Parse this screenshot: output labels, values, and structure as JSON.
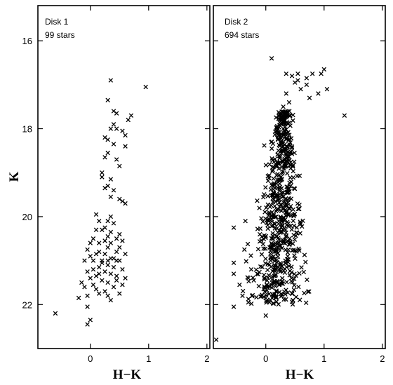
{
  "chart_data": [
    {
      "type": "scatter",
      "title": "Disk 1",
      "subtitle": "99 stars",
      "xlabel": "H−K",
      "ylabel": "K",
      "xlim": [
        -0.9,
        2.05
      ],
      "ylim": [
        23.0,
        15.2
      ],
      "y_inverted": true,
      "xticks": [
        0,
        1,
        2
      ],
      "yticks": [
        16,
        18,
        20,
        22
      ],
      "marker": "x",
      "grid": false,
      "points": [
        [
          0.35,
          16.9
        ],
        [
          0.95,
          17.05
        ],
        [
          0.3,
          17.35
        ],
        [
          0.4,
          17.6
        ],
        [
          0.45,
          17.65
        ],
        [
          0.7,
          17.7
        ],
        [
          0.65,
          17.8
        ],
        [
          0.4,
          17.9
        ],
        [
          0.45,
          18.0
        ],
        [
          0.35,
          18.0
        ],
        [
          0.55,
          18.05
        ],
        [
          0.6,
          18.15
        ],
        [
          0.25,
          18.2
        ],
        [
          0.3,
          18.25
        ],
        [
          0.4,
          18.35
        ],
        [
          0.6,
          18.4
        ],
        [
          0.3,
          18.55
        ],
        [
          0.45,
          18.7
        ],
        [
          0.2,
          19.0
        ],
        [
          0.2,
          19.1
        ],
        [
          0.35,
          19.15
        ],
        [
          0.3,
          19.3
        ],
        [
          0.25,
          19.35
        ],
        [
          0.4,
          19.4
        ],
        [
          0.5,
          19.6
        ],
        [
          0.55,
          19.65
        ],
        [
          0.6,
          19.7
        ],
        [
          0.1,
          19.95
        ],
        [
          0.35,
          20.0
        ],
        [
          0.15,
          20.1
        ],
        [
          0.3,
          20.1
        ],
        [
          0.4,
          20.15
        ],
        [
          0.2,
          20.3
        ],
        [
          0.1,
          20.3
        ],
        [
          0.35,
          20.35
        ],
        [
          0.5,
          20.4
        ],
        [
          0.45,
          20.5
        ],
        [
          0.25,
          20.55
        ],
        [
          0.15,
          20.6
        ],
        [
          0.0,
          20.6
        ],
        [
          0.35,
          20.6
        ],
        [
          0.55,
          20.55
        ],
        [
          0.3,
          20.7
        ],
        [
          0.15,
          20.8
        ],
        [
          -0.05,
          20.75
        ],
        [
          0.1,
          20.85
        ],
        [
          0.25,
          20.85
        ],
        [
          0.45,
          20.8
        ],
        [
          0.6,
          20.85
        ],
        [
          0.0,
          20.9
        ],
        [
          0.35,
          20.95
        ],
        [
          0.2,
          21.0
        ],
        [
          -0.1,
          21.0
        ],
        [
          0.5,
          21.0
        ],
        [
          0.3,
          21.1
        ],
        [
          0.15,
          21.15
        ],
        [
          0.4,
          21.15
        ],
        [
          0.05,
          21.2
        ],
        [
          -0.05,
          21.25
        ],
        [
          0.25,
          21.25
        ],
        [
          0.55,
          21.2
        ],
        [
          0.35,
          21.3
        ],
        [
          0.1,
          21.35
        ],
        [
          0.45,
          21.35
        ],
        [
          0.0,
          21.4
        ],
        [
          0.2,
          21.45
        ],
        [
          -0.15,
          21.5
        ],
        [
          0.3,
          21.5
        ],
        [
          0.05,
          21.55
        ],
        [
          0.55,
          21.55
        ],
        [
          0.4,
          21.6
        ],
        [
          0.1,
          21.65
        ],
        [
          0.25,
          21.7
        ],
        [
          0.5,
          21.75
        ],
        [
          -0.05,
          21.8
        ],
        [
          0.35,
          21.9
        ],
        [
          0.3,
          21.8
        ],
        [
          0.15,
          21.75
        ],
        [
          0.6,
          21.4
        ],
        [
          0.45,
          21.0
        ],
        [
          -0.1,
          21.6
        ],
        [
          0.2,
          21.05
        ],
        [
          0.5,
          20.7
        ],
        [
          0.3,
          20.45
        ],
        [
          0.05,
          20.5
        ],
        [
          -0.2,
          21.85
        ],
        [
          0.25,
          20.25
        ],
        [
          0.35,
          19.55
        ],
        [
          0.5,
          18.85
        ],
        [
          0.25,
          18.65
        ],
        [
          0.0,
          22.35
        ],
        [
          -0.05,
          22.45
        ],
        [
          -0.6,
          22.2
        ],
        [
          0.05,
          21.0
        ],
        [
          0.4,
          20.95
        ],
        [
          0.15,
          21.3
        ],
        [
          0.3,
          21.0
        ],
        [
          0.45,
          21.45
        ],
        [
          -0.05,
          22.05
        ]
      ]
    },
    {
      "type": "scatter",
      "title": "Disk 2",
      "subtitle": "694 stars",
      "xlabel": "H−K",
      "ylabel": "",
      "xlim": [
        -0.9,
        2.05
      ],
      "ylim": [
        23.0,
        15.2
      ],
      "y_inverted": true,
      "xticks": [
        0,
        1,
        2
      ],
      "yticks": [
        16,
        18,
        20,
        22
      ],
      "marker": "x",
      "grid": false,
      "outliers": [
        [
          -0.85,
          22.8
        ],
        [
          -0.55,
          22.05
        ],
        [
          -0.55,
          21.3
        ],
        [
          -0.55,
          21.05
        ],
        [
          -0.45,
          21.55
        ],
        [
          -0.55,
          20.25
        ],
        [
          -0.3,
          21.95
        ],
        [
          -0.35,
          20.1
        ],
        [
          -0.3,
          21.4
        ],
        [
          -0.4,
          21.8
        ],
        [
          -0.25,
          21.2
        ],
        [
          0.0,
          22.25
        ],
        [
          0.1,
          16.4
        ],
        [
          0.35,
          16.75
        ],
        [
          0.45,
          16.8
        ],
        [
          0.55,
          16.75
        ],
        [
          0.7,
          16.85
        ],
        [
          0.8,
          16.75
        ],
        [
          1.0,
          16.65
        ],
        [
          1.05,
          17.1
        ],
        [
          0.9,
          17.2
        ],
        [
          0.75,
          17.3
        ],
        [
          0.6,
          17.1
        ],
        [
          0.95,
          16.75
        ],
        [
          1.35,
          17.7
        ],
        [
          0.7,
          17.0
        ],
        [
          0.35,
          17.2
        ],
        [
          0.4,
          17.4
        ],
        [
          0.3,
          17.5
        ],
        [
          0.4,
          17.7
        ],
        [
          0.5,
          16.95
        ],
        [
          0.55,
          16.9
        ]
      ],
      "cluster": {
        "seed": 694,
        "count": 662
      }
    }
  ]
}
